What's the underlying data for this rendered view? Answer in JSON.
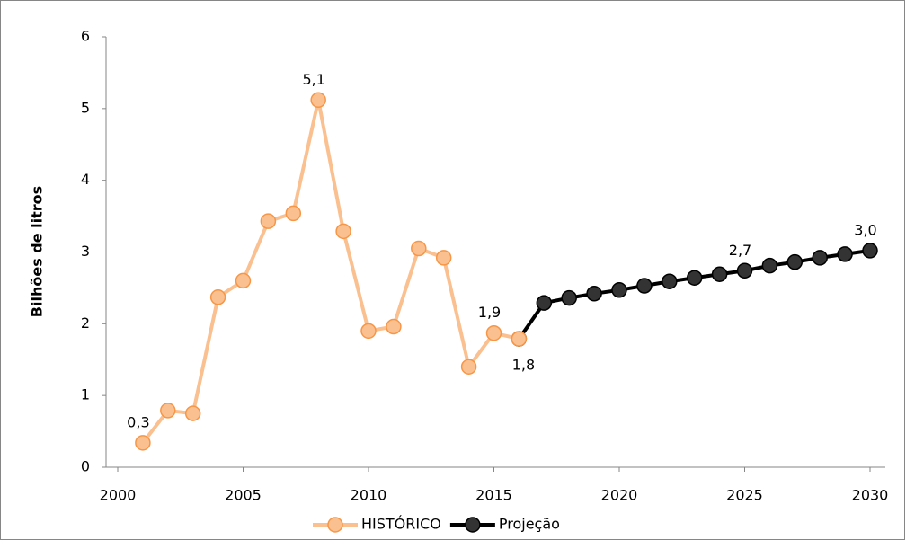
{
  "chart_data": {
    "type": "line",
    "y_label": "Bilhões de litros",
    "xlim": [
      2000,
      2030
    ],
    "xticks": [
      2000,
      2005,
      2010,
      2015,
      2020,
      2025,
      2030
    ],
    "ylim": [
      0,
      6
    ],
    "yticks": [
      0,
      1,
      2,
      3,
      4,
      5,
      6
    ],
    "grid": false,
    "legend": "bottom",
    "series": [
      {
        "name": "HISTÓRICO",
        "color": "#fac090",
        "marker_edge": "#f79646",
        "x": [
          2001,
          2002,
          2003,
          2004,
          2005,
          2006,
          2007,
          2008,
          2009,
          2010,
          2011,
          2012,
          2013,
          2014,
          2015,
          2016
        ],
        "values": [
          0.34,
          0.79,
          0.75,
          2.37,
          2.6,
          3.43,
          3.54,
          5.12,
          3.29,
          1.9,
          1.96,
          3.05,
          2.92,
          1.4,
          1.87,
          1.79
        ],
        "value_labels": [
          "0,3",
          null,
          null,
          null,
          null,
          null,
          null,
          "5,1",
          null,
          null,
          null,
          null,
          null,
          null,
          "1,9",
          "1,8"
        ]
      },
      {
        "name": "Projeção",
        "color": "#000000",
        "marker_edge": "#000000",
        "x": [
          2016,
          2017,
          2018,
          2019,
          2020,
          2021,
          2022,
          2023,
          2024,
          2025,
          2026,
          2027,
          2028,
          2029,
          2030
        ],
        "values": [
          1.79,
          2.29,
          2.36,
          2.42,
          2.47,
          2.53,
          2.59,
          2.64,
          2.69,
          2.74,
          2.81,
          2.86,
          2.92,
          2.97,
          3.02
        ],
        "value_labels": [
          null,
          null,
          null,
          null,
          null,
          null,
          null,
          null,
          null,
          "2,7",
          null,
          null,
          null,
          null,
          "3,0"
        ]
      }
    ]
  }
}
